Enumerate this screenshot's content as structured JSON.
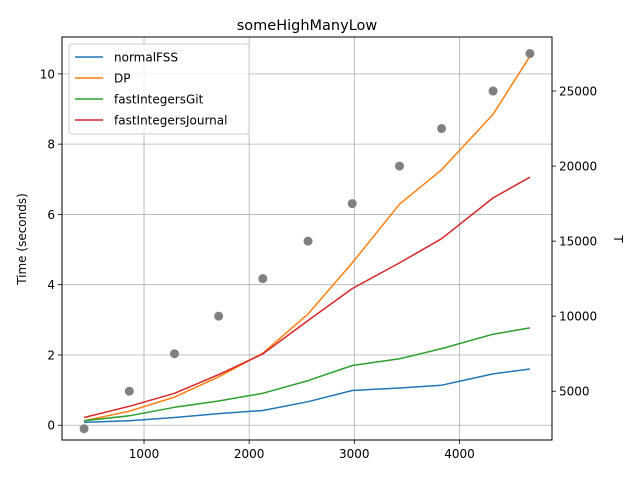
{
  "chart_data": {
    "type": "line",
    "title": "someHighManyLow",
    "xlabel": "",
    "ylabel": "Time (seconds)",
    "y2label": "T",
    "xlim": [
      220,
      4880
    ],
    "ylim": [
      -0.42,
      11.05
    ],
    "y2lim": [
      1750,
      28600
    ],
    "xticks": [
      1000,
      2000,
      3000,
      4000
    ],
    "yticks": [
      0,
      2,
      4,
      6,
      8,
      10
    ],
    "y2ticks": [
      5000,
      10000,
      15000,
      20000,
      25000
    ],
    "grid": true,
    "legend_position": "top-left",
    "x": [
      430,
      860,
      1290,
      1710,
      2130,
      2560,
      2980,
      3430,
      3830,
      4320,
      4670
    ],
    "series": [
      {
        "name": "normalFSS",
        "color": "#1f77b4",
        "values": [
          0.08,
          0.13,
          0.22,
          0.33,
          0.42,
          0.67,
          0.99,
          1.06,
          1.14,
          1.46,
          1.6
        ]
      },
      {
        "name": "DP",
        "color": "#ff7f0e",
        "values": [
          0.13,
          0.4,
          0.8,
          1.38,
          2.05,
          3.17,
          4.62,
          6.29,
          7.27,
          8.85,
          10.5
        ]
      },
      {
        "name": "fastIntegersGit",
        "color": "#2ca02c",
        "values": [
          0.13,
          0.27,
          0.51,
          0.69,
          0.91,
          1.27,
          1.7,
          1.89,
          2.18,
          2.59,
          2.77
        ]
      },
      {
        "name": "fastIntegersJournal",
        "color": "#d62728",
        "values": [
          0.22,
          0.54,
          0.91,
          1.44,
          2.03,
          2.98,
          3.89,
          4.62,
          5.31,
          6.47,
          7.06
        ]
      }
    ],
    "secondary_points": {
      "color": "#808080",
      "x": [
        430,
        860,
        1290,
        1710,
        2130,
        2560,
        2980,
        3430,
        3830,
        4320,
        4670
      ],
      "values": [
        2500,
        5000,
        7500,
        10000,
        12500,
        15000,
        17500,
        20000,
        22500,
        25000,
        27500
      ]
    }
  }
}
